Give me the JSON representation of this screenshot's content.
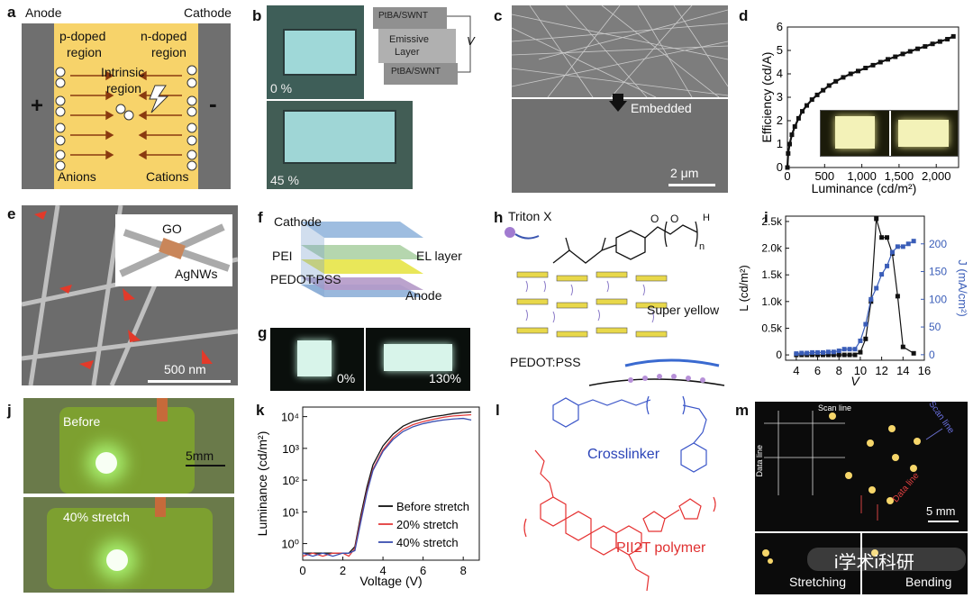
{
  "labels": {
    "a": "a",
    "b": "b",
    "c": "c",
    "d": "d",
    "e": "e",
    "f": "f",
    "g": "g",
    "h": "h",
    "i": "i",
    "j": "j",
    "k": "k",
    "l": "l",
    "m": "m"
  },
  "panel_a": {
    "anode": "Anode",
    "cathode": "Cathode",
    "p_doped": "p-doped",
    "region1": "region",
    "n_doped": "n-doped",
    "region2": "region",
    "intrinsic": "Intrinsic",
    "region3": "region",
    "anions": "Anions",
    "cations": "Cations",
    "plus": "+",
    "minus": "-",
    "fill_color": "#f7d36a",
    "electrode_color": "#6f6f6f"
  },
  "panel_b": {
    "pct1": "0 %",
    "pct2": "45 %",
    "layer_top": "PtBA/SWNT",
    "layer_mid1": "Emissive",
    "layer_mid2": "Layer",
    "layer_bot": "PtBA/SWNT",
    "voltage": "V"
  },
  "panel_c": {
    "embedded": "Embedded",
    "scale": "2 μm"
  },
  "panel_e": {
    "go": "GO",
    "agnws": "AgNWs",
    "scale": "500 nm"
  },
  "panel_f": {
    "cathode": "Cathode",
    "pei": "PEI",
    "el_layer": "EL layer",
    "pedot": "PEDOT:PSS",
    "anode": "Anode"
  },
  "panel_g": {
    "pct1": "0%",
    "pct2": "130%"
  },
  "panel_h": {
    "triton": "Triton X",
    "super_yellow": "Super yellow",
    "pedot": "PEDOT:PSS",
    "n": "n",
    "H": "H",
    "O1": "O",
    "O2": "O"
  },
  "panel_j": {
    "before": "Before",
    "stretch": "40% stretch",
    "scale": "5mm"
  },
  "panel_l": {
    "crosslinker": "Crosslinker",
    "polymer": "PII2T polymer"
  },
  "panel_m": {
    "scan_line1": "Scan line",
    "scan_line2": "Scan line",
    "data_line1": "Data line",
    "data_line2": "Data line",
    "scale": "5 mm",
    "stretching": "Stretching",
    "bending": "Bending",
    "watermark": "i学术i科研"
  },
  "chart_data": [
    {
      "id": "d",
      "type": "line",
      "xlabel": "Luminance (cd/m²)",
      "ylabel": "Efficiency (cd/A)",
      "xlim": [
        0,
        2300
      ],
      "ylim": [
        0,
        6
      ],
      "xticks": [
        "0",
        "500",
        "1,000",
        "1,500",
        "2,000"
      ],
      "xtick_values": [
        0,
        500,
        1000,
        1500,
        2000
      ],
      "yticks": [
        "0",
        "1",
        "2",
        "3",
        "4",
        "5",
        "6"
      ],
      "ytick_values": [
        0,
        1,
        2,
        3,
        4,
        5,
        6
      ],
      "series": [
        {
          "values_x": [
            0,
            10,
            30,
            60,
            100,
            150,
            200,
            260,
            330,
            400,
            480,
            560,
            650,
            750,
            850,
            950,
            1050,
            1150,
            1250,
            1350,
            1450,
            1550,
            1650,
            1750,
            1850,
            1950,
            2050,
            2150,
            2230
          ],
          "values_y": [
            0,
            0.6,
            1.0,
            1.4,
            1.75,
            2.1,
            2.4,
            2.65,
            2.9,
            3.1,
            3.3,
            3.5,
            3.68,
            3.85,
            4.0,
            4.12,
            4.25,
            4.37,
            4.5,
            4.62,
            4.73,
            4.85,
            4.96,
            5.07,
            5.17,
            5.28,
            5.38,
            5.48,
            5.6
          ]
        }
      ]
    },
    {
      "id": "i",
      "type": "line",
      "xlabel": "V",
      "ylabel": "L (cd/m²)",
      "ylabel2": "J (mA/cm²)",
      "xlim": [
        3,
        16
      ],
      "ylim": [
        -100,
        2600
      ],
      "ylim2": [
        -10,
        250
      ],
      "xticks": [
        "4",
        "6",
        "8",
        "10",
        "12",
        "14",
        "16"
      ],
      "xtick_values": [
        4,
        6,
        8,
        10,
        12,
        14,
        16
      ],
      "yticks": [
        "0",
        "0.5k",
        "1.0k",
        "1.5k",
        "2.0k",
        "2.5k"
      ],
      "ytick_values": [
        0,
        500,
        1000,
        1500,
        2000,
        2500
      ],
      "yticks2": [
        "0",
        "50",
        "100",
        "150",
        "200"
      ],
      "ytick2_values": [
        0,
        50,
        100,
        150,
        200
      ],
      "series": [
        {
          "axis": "left",
          "color": "#111111",
          "x": [
            4,
            4.5,
            5,
            5.5,
            6,
            6.5,
            7,
            7.5,
            8,
            8.5,
            9,
            9.5,
            10,
            10.5,
            11,
            11.5,
            12,
            12.5,
            13,
            13.5,
            14,
            15
          ],
          "values": [
            0,
            0,
            0,
            0,
            0,
            0,
            0,
            0,
            0,
            0,
            0,
            0,
            50,
            300,
            1000,
            2550,
            2200,
            2200,
            1900,
            1100,
            150,
            30
          ]
        },
        {
          "axis": "right",
          "color": "#3a5db8",
          "x": [
            4,
            4.5,
            5,
            5.5,
            6,
            6.5,
            7,
            7.5,
            8,
            8.5,
            9,
            9.5,
            10,
            10.5,
            11,
            11.5,
            12,
            12.5,
            13,
            13.5,
            14,
            14.5,
            15
          ],
          "values": [
            2,
            3,
            3,
            4,
            4,
            4,
            5,
            5,
            7,
            10,
            10,
            10,
            25,
            55,
            100,
            120,
            145,
            160,
            185,
            195,
            195,
            200,
            205
          ]
        }
      ]
    },
    {
      "id": "k",
      "type": "line",
      "xlabel": "Voltage (V)",
      "ylabel": "Luminance (cd/m²)",
      "yscale": "log",
      "xlim": [
        0,
        8.8
      ],
      "ylim": [
        0.3,
        20000
      ],
      "xticks": [
        "0",
        "2",
        "4",
        "6",
        "8"
      ],
      "xtick_values": [
        0,
        2,
        4,
        6,
        8
      ],
      "yticks": [
        "10⁰",
        "10¹",
        "10²",
        "10³",
        "10⁴"
      ],
      "ytick_values": [
        1,
        10,
        100,
        1000,
        10000
      ],
      "legend_position": "bottom-right",
      "series": [
        {
          "name": "Before stretch",
          "color": "#111111",
          "x": [
            0,
            0.5,
            1,
            1.5,
            2,
            2.3,
            2.6,
            2.9,
            3.2,
            3.5,
            4,
            4.5,
            5,
            5.5,
            6,
            6.5,
            7,
            7.5,
            8,
            8.4
          ],
          "values": [
            0.5,
            0.5,
            0.5,
            0.5,
            0.5,
            0.5,
            0.8,
            8,
            60,
            300,
            1200,
            2800,
            5000,
            7000,
            8500,
            10000,
            11000,
            12500,
            13500,
            14000
          ]
        },
        {
          "name": "20% stretch",
          "color": "#e23b3b",
          "x": [
            0,
            0.5,
            1,
            1.5,
            2,
            2.3,
            2.6,
            2.9,
            3.2,
            3.5,
            4,
            4.5,
            5,
            5.5,
            6,
            6.5,
            7,
            7.5,
            8,
            8.4
          ],
          "values": [
            0.4,
            0.5,
            0.4,
            0.5,
            0.5,
            0.4,
            0.7,
            6,
            45,
            220,
            900,
            2200,
            4000,
            5600,
            7000,
            8200,
            9500,
            10500,
            11000,
            11500
          ]
        },
        {
          "name": "40% stretch",
          "color": "#3a4fb0",
          "x": [
            0,
            0.5,
            1,
            1.5,
            2,
            2.3,
            2.6,
            2.9,
            3.2,
            3.5,
            4,
            4.5,
            5,
            5.5,
            6,
            6.5,
            7,
            7.5,
            8,
            8.4
          ],
          "values": [
            0.5,
            0.4,
            0.5,
            0.4,
            0.5,
            0.5,
            0.6,
            5,
            40,
            200,
            800,
            1900,
            3400,
            4800,
            6000,
            7000,
            7800,
            8400,
            8800,
            7800
          ]
        }
      ]
    }
  ]
}
